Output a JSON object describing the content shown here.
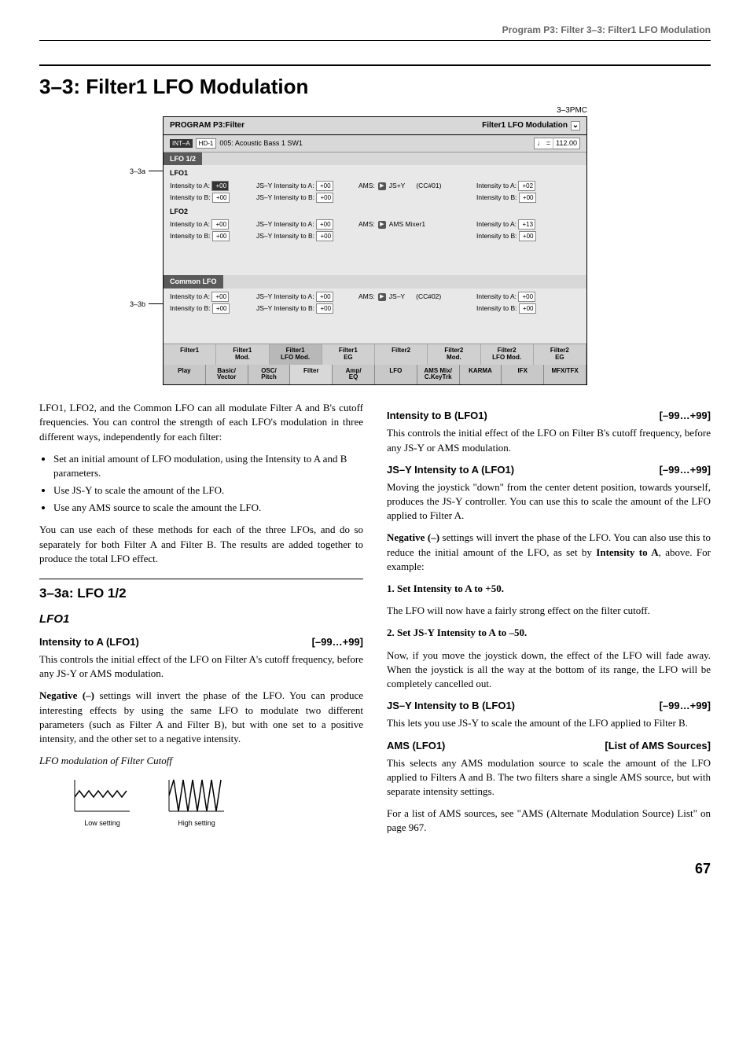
{
  "header": {
    "breadcrumb": "Program P3: Filter   3–3: Filter1 LFO Modulation"
  },
  "h1": "3–3: Filter1 LFO Modulation",
  "pmc": "3–3PMC",
  "screen": {
    "title_left": "PROGRAM P3:Filter",
    "title_right": "Filter1 LFO Modulation",
    "bank": "INT–A",
    "hd": "HD-1",
    "program_name": "005: Acoustic Bass 1 SW1",
    "tempo_label": "♩ =",
    "tempo_val": "112.00",
    "section1": "LFO 1/2",
    "section2": "Common LFO",
    "lfo1_label": "LFO1",
    "lfo2_label": "LFO2",
    "rows": {
      "lfo1a": {
        "intA_label": "Intensity to A:",
        "intA": "+00",
        "intA_hl": true,
        "jsA_label": "JS–Y Intensity to A:",
        "jsA": "+00",
        "ams_label": "AMS:",
        "ams_src": "JS+Y",
        "cc": "(CC#01)",
        "ams_intA_label": "Intensity to A:",
        "ams_intA": "+02"
      },
      "lfo1b": {
        "intB_label": "Intensity to B:",
        "intB": "+00",
        "jsB_label": "JS–Y Intensity to B:",
        "jsB": "+00",
        "ams_intB_label": "Intensity to B:",
        "ams_intB": "+00"
      },
      "lfo2a": {
        "intA_label": "Intensity to A:",
        "intA": "+00",
        "jsA_label": "JS–Y Intensity to A:",
        "jsA": "+00",
        "ams_label": "AMS:",
        "ams_src": "AMS Mixer1",
        "cc": "",
        "ams_intA_label": "Intensity to A:",
        "ams_intA": "+13"
      },
      "lfo2b": {
        "intB_label": "Intensity to B:",
        "intB": "+00",
        "jsB_label": "JS–Y Intensity to B:",
        "jsB": "+00",
        "ams_intB_label": "Intensity to B:",
        "ams_intB": "+00"
      },
      "cmna": {
        "intA_label": "Intensity to A:",
        "intA": "+00",
        "jsA_label": "JS–Y Intensity to A:",
        "jsA": "+00",
        "ams_label": "AMS:",
        "ams_src": "JS–Y",
        "cc": "(CC#02)",
        "ams_intA_label": "Intensity to A:",
        "ams_intA": "+00"
      },
      "cmnb": {
        "intB_label": "Intensity to B:",
        "intB": "+00",
        "jsB_label": "JS–Y Intensity to B:",
        "jsB": "+00",
        "ams_intB_label": "Intensity to B:",
        "ams_intB": "+00"
      }
    },
    "tabs": [
      "Filter1",
      "Filter1\nMod.",
      "Filter1\nLFO Mod.",
      "Filter1\nEG",
      "Filter2",
      "Filter2\nMod.",
      "Filter2\nLFO Mod.",
      "Filter2\nEG"
    ],
    "btabs": [
      "Play",
      "Basic/\nVector",
      "OSC/\nPitch",
      "Filter",
      "Amp/\nEQ",
      "LFO",
      "AMS Mix/\nC.KeyTrk",
      "KARMA",
      "IFX",
      "MFX/TFX"
    ]
  },
  "anno": {
    "a": "3–3a",
    "b": "3–3b"
  },
  "body": {
    "intro": "LFO1, LFO2, and the Common LFO can all modulate Filter A and B's cutoff frequencies. You can control the strength of each LFO's modulation in three different ways, independently for each filter:",
    "bullets": [
      "Set an initial amount of LFO modulation, using the Intensity to A and B parameters.",
      "Use JS-Y to scale the amount of the LFO.",
      "Use any AMS source to scale the amount the LFO."
    ],
    "intro2": "You can use each of these methods for each of the three LFOs, and do so separately for both Filter A and Filter B. The results are added together to produce the total LFO effect.",
    "h2": "3–3a: LFO 1/2",
    "h3": "LFO1",
    "p1": {
      "name": "Intensity to A (LFO1)",
      "range": "[–99…+99]"
    },
    "p1t": "This controls the initial effect of the LFO on Filter A's cutoff frequency, before any JS-Y or AMS modulation.",
    "p1n": "Negative (–) settings will invert the phase of the LFO. You can produce interesting effects by using the same LFO to modulate two different parameters (such as Filter A and Filter B), but with one set to a positive intensity, and the other set to a negative intensity.",
    "p1c": "LFO modulation of Filter Cutoff",
    "wave_low": "Low setting",
    "wave_high": "High setting",
    "p2": {
      "name": "Intensity to B (LFO1)",
      "range": "[–99…+99]"
    },
    "p2t": "This controls the initial effect of the LFO on Filter B's cutoff frequency, before any JS-Y or AMS modulation.",
    "p3": {
      "name": "JS–Y Intensity to A (LFO1)",
      "range": "[–99…+99]"
    },
    "p3t": "Moving the joystick \"down\" from the center detent position, towards yourself, produces the JS-Y controller. You can use this to scale the amount of the LFO applied to Filter A.",
    "p3n_pre": "Negative (–)",
    "p3n": " settings will invert the phase of the LFO. You can also use this to reduce the initial amount of the LFO, as set by ",
    "p3n_b": "Intensity to A",
    "p3n_post": ", above. For example:",
    "p3s1": "1.  Set Intensity to A to +50.",
    "p3s1t": "The LFO will now have a fairly strong effect on the filter cutoff.",
    "p3s2": "2.  Set JS-Y Intensity to A to –50.",
    "p3s2t": "Now, if you move the joystick down, the effect of the LFO will fade away. When the joystick is all the way at the bottom of its range, the LFO will be completely cancelled out.",
    "p4": {
      "name": "JS–Y Intensity to B (LFO1)",
      "range": "[–99…+99]"
    },
    "p4t": "This lets you use JS-Y to scale the amount of the LFO applied to Filter B.",
    "p5": {
      "name": "AMS (LFO1)",
      "range": "[List of AMS Sources]"
    },
    "p5t": "This selects any AMS modulation source to scale the amount of the LFO applied to Filters A and B. The two filters share a single AMS source, but with separate intensity settings.",
    "p5t2": "For a list of AMS sources, see \"AMS (Alternate Modulation Source) List\" on page 967."
  },
  "pagenum": "67"
}
